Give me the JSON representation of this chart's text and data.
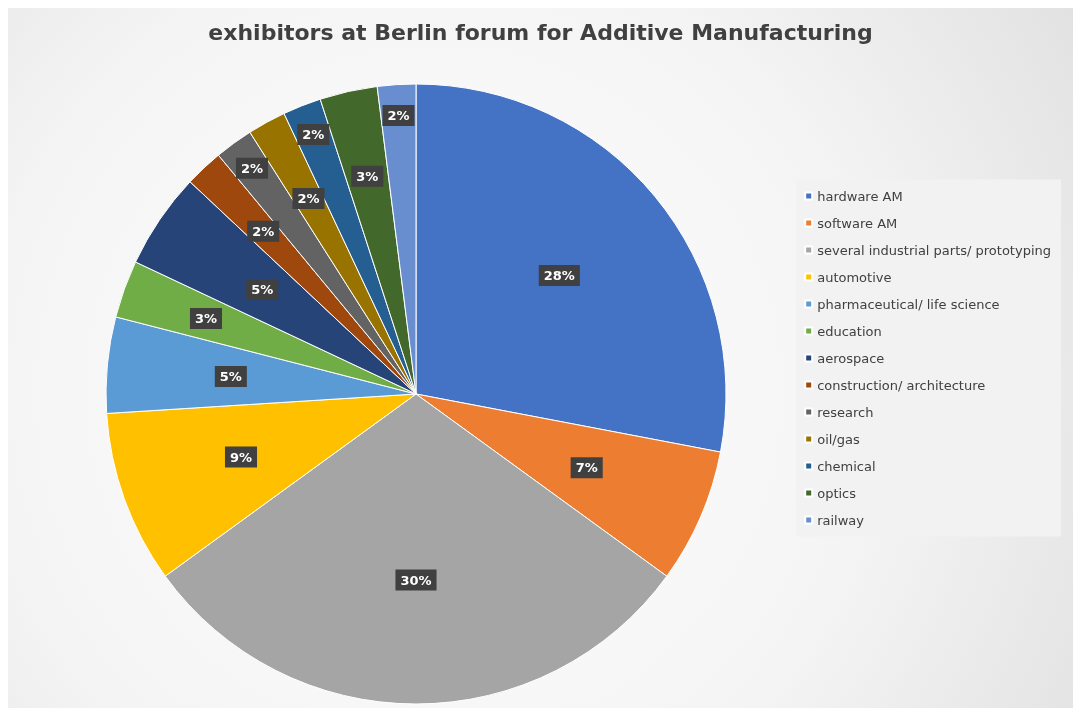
{
  "chart_data": {
    "type": "pie",
    "title": "exhibitors at Berlin forum for Additive Manufacturing",
    "categories": [
      "hardware AM",
      "software AM",
      "several industrial parts/ prototyping",
      "automotive",
      "pharmaceutical/ life science",
      "education",
      "aerospace",
      "construction/ architecture",
      "research",
      "oil/gas",
      "chemical",
      "optics",
      "railway"
    ],
    "values": [
      28,
      7,
      30,
      9,
      5,
      3,
      5,
      2,
      2,
      2,
      2,
      3,
      2
    ],
    "value_labels": [
      "28%",
      "7%",
      "30%",
      "9%",
      "5%",
      "3%",
      "5%",
      "2%",
      "2%",
      "2%",
      "2%",
      "3%",
      "2%"
    ],
    "colors": [
      "#4472c4",
      "#ed7d31",
      "#a5a5a5",
      "#ffc000",
      "#5b9bd5",
      "#70ad47",
      "#264478",
      "#9e480e",
      "#636363",
      "#997300",
      "#255e91",
      "#43682b",
      "#698ed0"
    ],
    "legend": "right"
  }
}
